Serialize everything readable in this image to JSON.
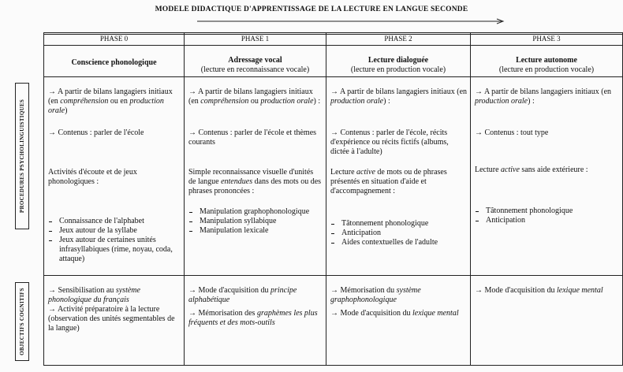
{
  "title": "MODELE DIDACTIQUE D'APPRENTISSAGE DE LA LECTURE EN LANGUE SECONDE",
  "row_labels": [
    "PROCEDURES PSYCHOLINGUISTIQUES",
    "OBJECTIFS COGNITIFS"
  ],
  "columns": [
    {
      "phase": "PHASE 0",
      "title": "Conscience phonologique",
      "procedures": [
        [
          "→ A partir de bilans langagiers initiaux (en ",
          {
            "italic": "compréhension"
          },
          " ou en ",
          {
            "italic": "production orale"
          },
          ")"
        ],
        [
          "→ Contenus : parler de l'école"
        ],
        [
          "Activités d'écoute et de jeux phonologiques :"
        ],
        {
          "items": [
            "Connaissance de l'alphabet",
            "Jeux autour de la syllabe",
            "Jeux autour de certaines unités infrasyllabiques (rime, noyau, coda, attaque)"
          ]
        }
      ],
      "objectives": [
        [
          "→ Sensibilisation au ",
          {
            "italic": "système phonologique du français"
          }
        ],
        [
          "→ Activité préparatoire à la lecture (observation des unités segmentables de la langue)"
        ]
      ]
    },
    {
      "phase": "PHASE 1",
      "title": "Adressage vocal",
      "subtitle": "(lecture en reconnaissance vocale)",
      "procedures": [
        [
          "→ A partir de bilans langagiers initiaux (en ",
          {
            "italic": "compréhension"
          },
          " ou ",
          {
            "italic": "production orale"
          },
          ") :"
        ],
        [
          "→ Contenus : parler de l'école et thèmes courants"
        ],
        [
          "Simple reconnaissance visuelle d'unités de langue ",
          {
            "italic": "entendues"
          },
          " dans des mots ou des phrases prononcées :"
        ],
        {
          "items": [
            "Manipulation graphophonologique",
            "Manipulation syllabique",
            "Manipulation lexicale"
          ]
        }
      ],
      "objectives": [
        [
          "→ Mode d'acquisition du ",
          {
            "italic": "principe alphabétique"
          }
        ],
        [
          "→ Mémorisation des ",
          {
            "italic": "graphèmes les plus fréquents et des mots-outils"
          }
        ]
      ]
    },
    {
      "phase": "PHASE 2",
      "title": "Lecture dialoguée",
      "subtitle": "(lecture en production vocale)",
      "procedures": [
        [
          "→ A partir de bilans langagiers initiaux (en ",
          {
            "italic": "production orale"
          },
          ") :"
        ],
        [
          "→ Contenus : parler de l'école, récits d'expérience ou récits fictifs (albums, dictée à l'adulte)"
        ],
        [
          "Lecture ",
          {
            "italic": "active"
          },
          " de mots ou de phrases présentés en situation d'aide et d'accompagnement :"
        ],
        {
          "items": [
            "Tâtonnement phonologique",
            "Anticipation",
            "Aides contextuelles de l'adulte"
          ]
        }
      ],
      "objectives": [
        [
          "→ Mémorisation du ",
          {
            "italic": "système graphophonologique"
          }
        ],
        [
          "→ Mode d'acquisition du ",
          {
            "italic": "lexique mental"
          }
        ]
      ]
    },
    {
      "phase": "PHASE 3",
      "title": "Lecture autonome",
      "subtitle": "(lecture en production vocale)",
      "procedures": [
        [
          "→ A partir de bilans langagiers initiaux (en ",
          {
            "italic": "production orale"
          },
          ") :"
        ],
        [
          "→ Contenus : tout type"
        ],
        [
          "Lecture ",
          {
            "italic": "active"
          },
          " sans aide extérieure :"
        ],
        {
          "items": [
            "Tâtonnement phonologique",
            "Anticipation"
          ]
        }
      ],
      "objectives": [
        [
          "→ Mode d'acquisition du ",
          {
            "italic": "lexique mental"
          }
        ]
      ]
    }
  ]
}
